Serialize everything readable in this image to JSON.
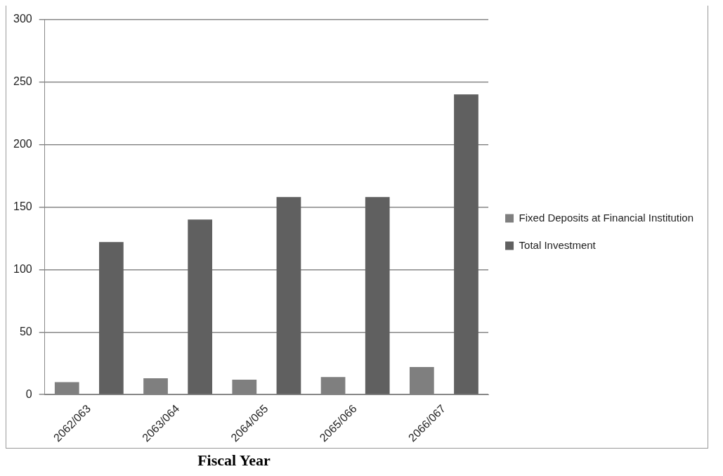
{
  "chart_data": {
    "type": "bar",
    "xlabel": "Fiscal Year",
    "categories": [
      "2062/063",
      "2063/064",
      "2064/065",
      "2065/066",
      "2066/067"
    ],
    "series": [
      {
        "name": "Fixed Deposits at Financial Institution",
        "color": "#7f7f7f",
        "values": [
          10,
          13,
          12,
          14,
          22
        ]
      },
      {
        "name": "Total Investment",
        "color": "#606060",
        "values": [
          122,
          140,
          158,
          158,
          240
        ]
      }
    ],
    "ylim": [
      0,
      300
    ],
    "yticks": [
      0,
      50,
      100,
      150,
      200,
      250,
      300
    ],
    "grid": "y",
    "legend": "right"
  }
}
